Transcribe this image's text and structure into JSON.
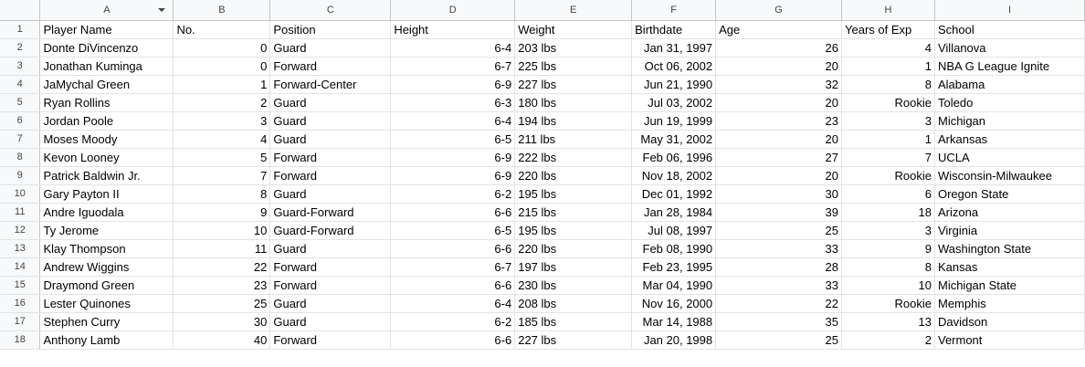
{
  "columns": [
    "A",
    "B",
    "C",
    "D",
    "E",
    "F",
    "G",
    "H",
    "I"
  ],
  "row_numbers": [
    "1",
    "2",
    "3",
    "4",
    "5",
    "6",
    "7",
    "8",
    "9",
    "10",
    "11",
    "12",
    "13",
    "14",
    "15",
    "16",
    "17",
    "18"
  ],
  "header_row": [
    "Player Name",
    "No.",
    "Position",
    "Height",
    "Weight",
    "Birthdate",
    "Age",
    "Years of Exp",
    "School"
  ],
  "rows": [
    [
      "Donte DiVincenzo",
      "0",
      "Guard",
      "6-4",
      "203 lbs",
      "Jan 31, 1997",
      "26",
      "4",
      "Villanova"
    ],
    [
      "Jonathan Kuminga",
      "0",
      "Forward",
      "6-7",
      "225 lbs",
      "Oct 06, 2002",
      "20",
      "1",
      "NBA G League Ignite"
    ],
    [
      "JaMychal Green",
      "1",
      "Forward-Center",
      "6-9",
      "227 lbs",
      "Jun 21, 1990",
      "32",
      "8",
      "Alabama"
    ],
    [
      "Ryan Rollins",
      "2",
      "Guard",
      "6-3",
      "180 lbs",
      "Jul 03, 2002",
      "20",
      "Rookie",
      "Toledo"
    ],
    [
      "Jordan Poole",
      "3",
      "Guard",
      "6-4",
      "194 lbs",
      "Jun 19, 1999",
      "23",
      "3",
      "Michigan"
    ],
    [
      "Moses Moody",
      "4",
      "Guard",
      "6-5",
      "211 lbs",
      "May 31, 2002",
      "20",
      "1",
      "Arkansas"
    ],
    [
      "Kevon Looney",
      "5",
      "Forward",
      "6-9",
      "222 lbs",
      "Feb 06, 1996",
      "27",
      "7",
      "UCLA"
    ],
    [
      "Patrick Baldwin Jr.",
      "7",
      "Forward",
      "6-9",
      "220 lbs",
      "Nov 18, 2002",
      "20",
      "Rookie",
      "Wisconsin-Milwaukee"
    ],
    [
      "Gary Payton II",
      "8",
      "Guard",
      "6-2",
      "195 lbs",
      "Dec 01, 1992",
      "30",
      "6",
      "Oregon State"
    ],
    [
      "Andre Iguodala",
      "9",
      "Guard-Forward",
      "6-6",
      "215 lbs",
      "Jan 28, 1984",
      "39",
      "18",
      "Arizona"
    ],
    [
      "Ty Jerome",
      "10",
      "Guard-Forward",
      "6-5",
      "195 lbs",
      "Jul 08, 1997",
      "25",
      "3",
      "Virginia"
    ],
    [
      "Klay Thompson",
      "11",
      "Guard",
      "6-6",
      "220 lbs",
      "Feb 08, 1990",
      "33",
      "9",
      "Washington State"
    ],
    [
      "Andrew Wiggins",
      "22",
      "Forward",
      "6-7",
      "197 lbs",
      "Feb 23, 1995",
      "28",
      "8",
      "Kansas"
    ],
    [
      "Draymond Green",
      "23",
      "Forward",
      "6-6",
      "230 lbs",
      "Mar 04, 1990",
      "33",
      "10",
      "Michigan State"
    ],
    [
      "Lester Quinones",
      "25",
      "Guard",
      "6-4",
      "208 lbs",
      "Nov 16, 2000",
      "22",
      "Rookie",
      "Memphis"
    ],
    [
      "Stephen Curry",
      "30",
      "Guard",
      "6-2",
      "185 lbs",
      "Mar 14, 1988",
      "35",
      "13",
      "Davidson"
    ],
    [
      "Anthony Lamb",
      "40",
      "Forward",
      "6-6",
      "227 lbs",
      "Jan 20, 1998",
      "25",
      "2",
      "Vermont"
    ]
  ]
}
